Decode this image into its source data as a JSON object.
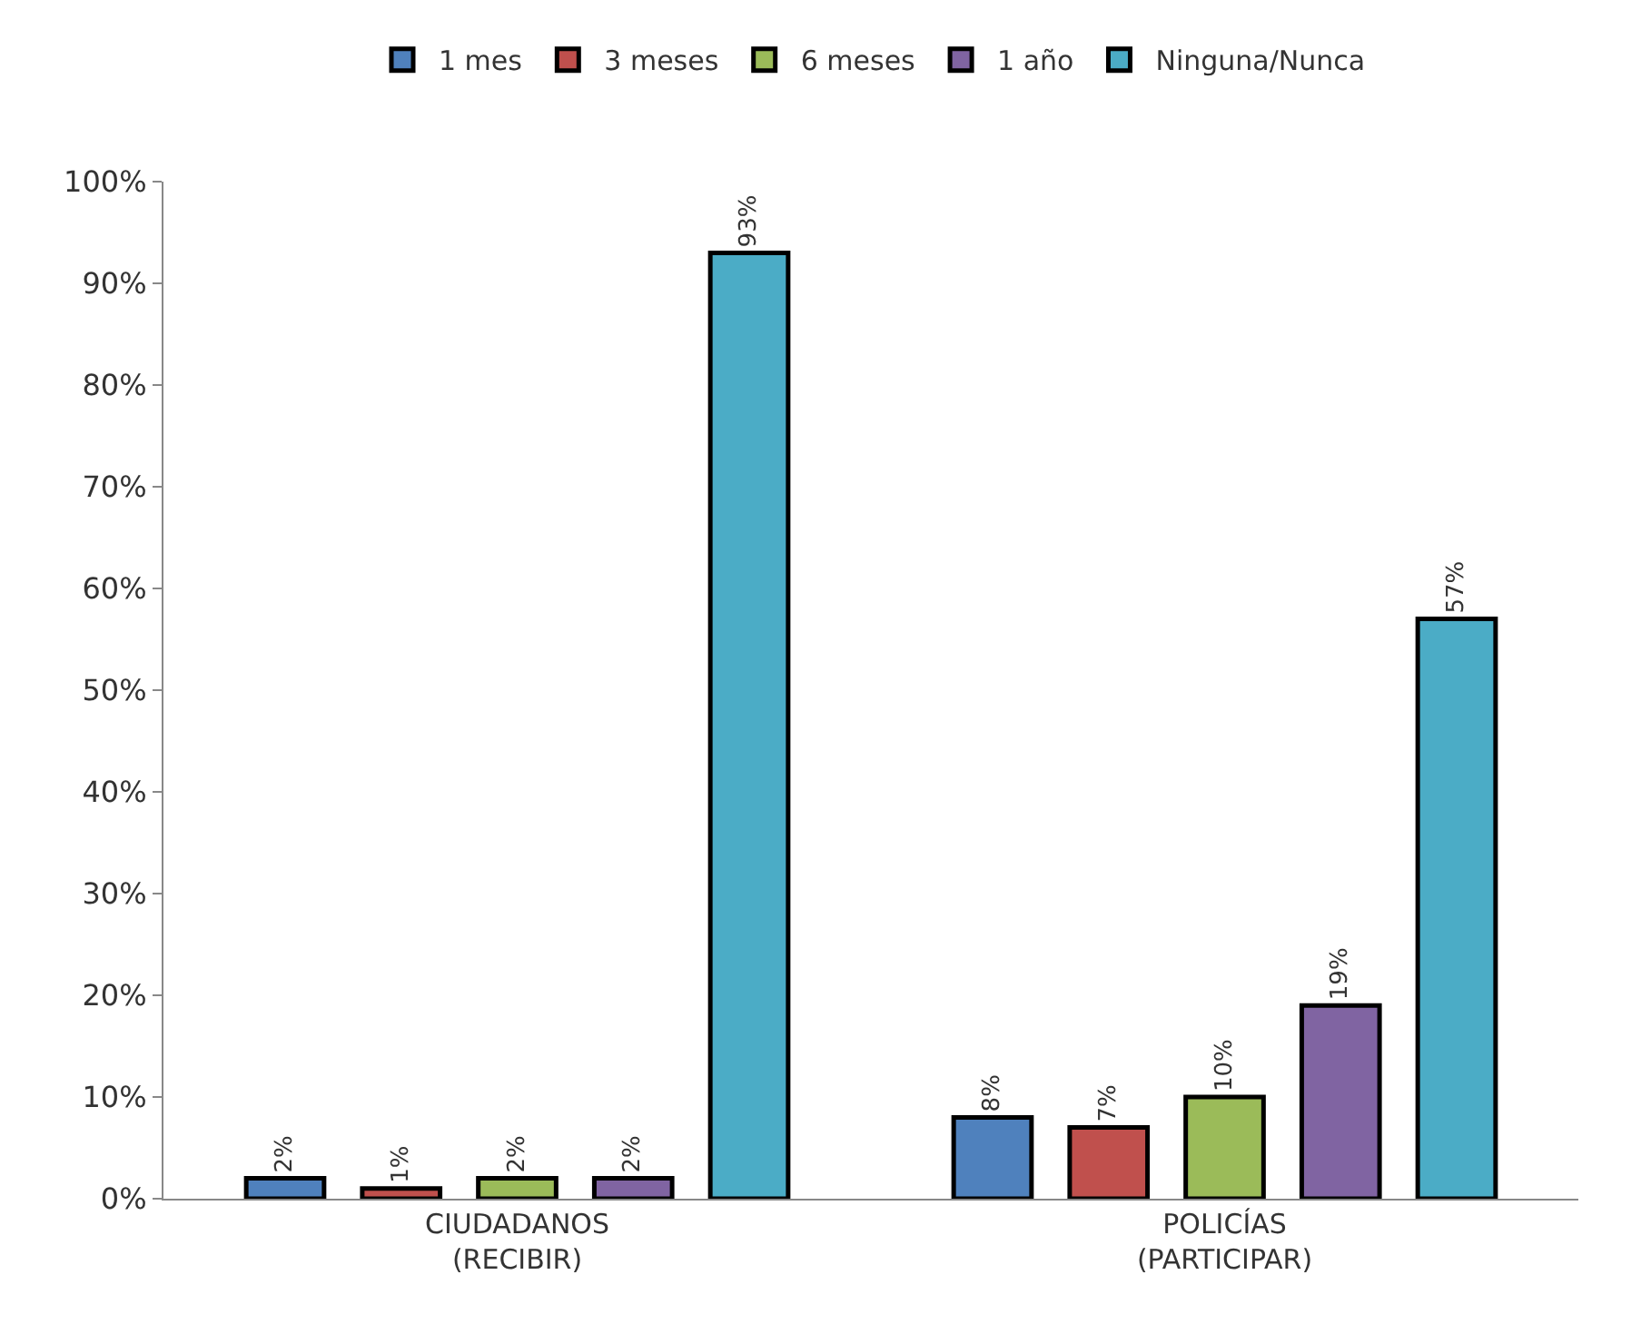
{
  "chart_data": {
    "type": "bar",
    "categories": [
      "CIUDADANOS\n(RECIBIR)",
      "POLICÍAS\n(PARTICIPAR)"
    ],
    "series": [
      {
        "name": "1 mes",
        "color": "#4f81bd",
        "values": [
          2,
          8
        ],
        "value_labels": [
          "2%",
          "8%"
        ]
      },
      {
        "name": "3 meses",
        "color": "#c0504d",
        "values": [
          1,
          7
        ],
        "value_labels": [
          "1%",
          "7%"
        ]
      },
      {
        "name": "6 meses",
        "color": "#9bbb59",
        "values": [
          2,
          10
        ],
        "value_labels": [
          "2%",
          "10%"
        ]
      },
      {
        "name": "1 año",
        "color": "#8064a2",
        "values": [
          2,
          19
        ],
        "value_labels": [
          "2%",
          "19%"
        ]
      },
      {
        "name": "Ninguna/Nunca",
        "color": "#4bacc6",
        "values": [
          93,
          57
        ],
        "value_labels": [
          "93%",
          "57%"
        ]
      }
    ],
    "ylim": [
      0,
      100
    ],
    "yticks": [
      {
        "value": 0,
        "label": "0%"
      },
      {
        "value": 10,
        "label": "10%"
      },
      {
        "value": 20,
        "label": "20%"
      },
      {
        "value": 30,
        "label": "30%"
      },
      {
        "value": 40,
        "label": "40%"
      },
      {
        "value": 50,
        "label": "50%"
      },
      {
        "value": 60,
        "label": "60%"
      },
      {
        "value": 70,
        "label": "70%"
      },
      {
        "value": 80,
        "label": "80%"
      },
      {
        "value": 90,
        "label": "90%"
      },
      {
        "value": 100,
        "label": "100%"
      }
    ],
    "legend": "top"
  }
}
